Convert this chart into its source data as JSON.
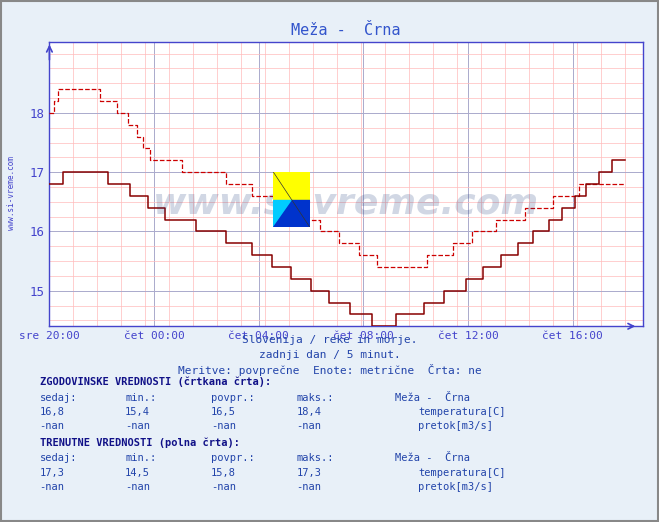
{
  "title": "Meža -  Črna",
  "background_color": "#e8f0f8",
  "plot_bg_color": "#ffffff",
  "grid_color_major": "#aaaacc",
  "grid_color_minor": "#ddaaaa",
  "x_labels": [
    "sre 20:00",
    "čet 00:00",
    "čet 04:00",
    "čet 08:00",
    "čet 12:00",
    "čet 16:00"
  ],
  "x_ticks": [
    0,
    48,
    96,
    144,
    192,
    240
  ],
  "y_ticks": [
    15,
    16,
    17,
    18
  ],
  "ylim": [
    14.4,
    19.2
  ],
  "xlim": [
    0,
    264
  ],
  "axis_color": "#4444cc",
  "line_color_dashed": "#cc0000",
  "line_color_solid": "#880000",
  "title_color": "#3355cc",
  "subtitle_lines": [
    "Slovenija / reke in morje.",
    "zadnji dan / 5 minut.",
    "Meritve: povprečne  Enote: metrične  Črta: ne"
  ],
  "info_text_color": "#2244aa",
  "watermark_text": "www.si-vreme.com",
  "watermark_color": "#1a3a7a",
  "left_label": "www.si-vreme.com",
  "n_points": 265,
  "border_color": "#888888",
  "fig_bg": "#e8f0f8"
}
